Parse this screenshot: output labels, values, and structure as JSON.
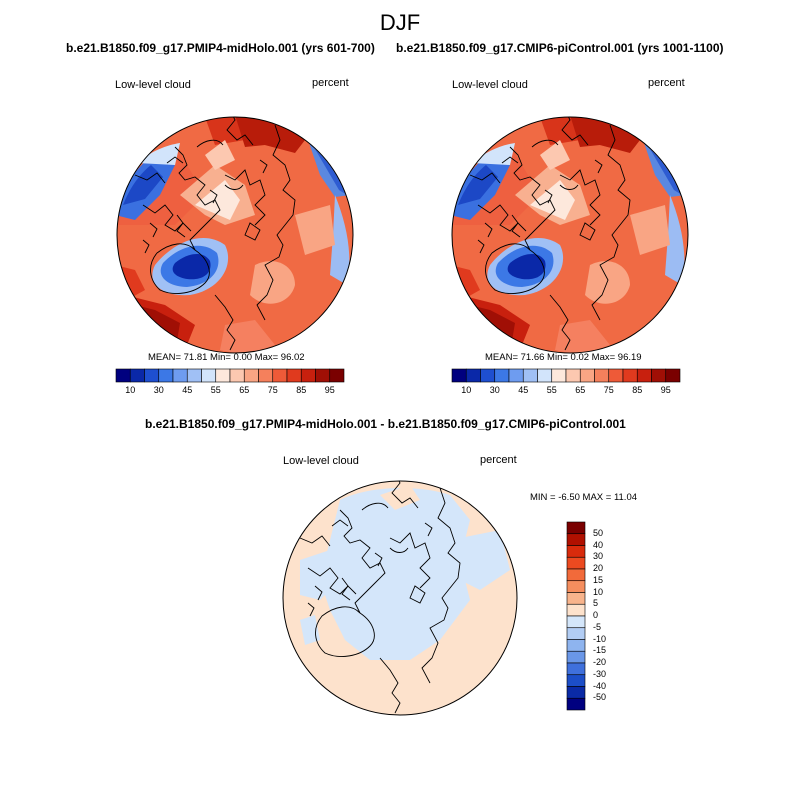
{
  "season": "DJF",
  "left_panel": {
    "title": "b.e21.B1850.f09_g17.PMIP4-midHolo.001 (yrs 601-700)",
    "variable": "Low-level cloud",
    "units": "percent",
    "stats": "MEAN=  71.81  Min=   0.00  Max=  96.02"
  },
  "right_panel": {
    "title": "b.e21.B1850.f09_g17.CMIP6-piControl.001 (yrs 1001-1100)",
    "variable": "Low-level cloud",
    "units": "percent",
    "stats": "MEAN=  71.66  Min=   0.02  Max=  96.19"
  },
  "diff_panel": {
    "title": "b.e21.B1850.f09_g17.PMIP4-midHolo.001 - b.e21.B1850.f09_g17.CMIP6-piControl.001",
    "variable": "Low-level cloud",
    "units": "percent",
    "stats": "MIN =  -6.50 MAX =  11.04"
  },
  "horizontal_colorbar": {
    "colors": [
      "#00007f",
      "#0a28a8",
      "#1e4fd0",
      "#3c78e6",
      "#6e9cf0",
      "#a0c0f5",
      "#d2e4fb",
      "#fde8dc",
      "#fcc8b0",
      "#f9a584",
      "#f5805c",
      "#ee5a38",
      "#e03a1e",
      "#c8200e",
      "#a00f05",
      "#7a0000"
    ],
    "labels": [
      "10",
      "30",
      "45",
      "55",
      "65",
      "75",
      "85",
      "95"
    ]
  },
  "vertical_colorbar": {
    "colors": [
      "#7a0000",
      "#b01000",
      "#d82b0c",
      "#ec4a20",
      "#f26a3a",
      "#f58e5e",
      "#f8b48c",
      "#fde2cc",
      "#d4e6fa",
      "#b2cdf4",
      "#8eb4ef",
      "#6a97e8",
      "#3f70dc",
      "#1c4ec8",
      "#0a2aa6",
      "#000080"
    ],
    "labels": [
      "50",
      "40",
      "30",
      "20",
      "15",
      "10",
      "5",
      "0",
      "-5",
      "-10",
      "-15",
      "-20",
      "-30",
      "-40",
      "-50"
    ]
  }
}
